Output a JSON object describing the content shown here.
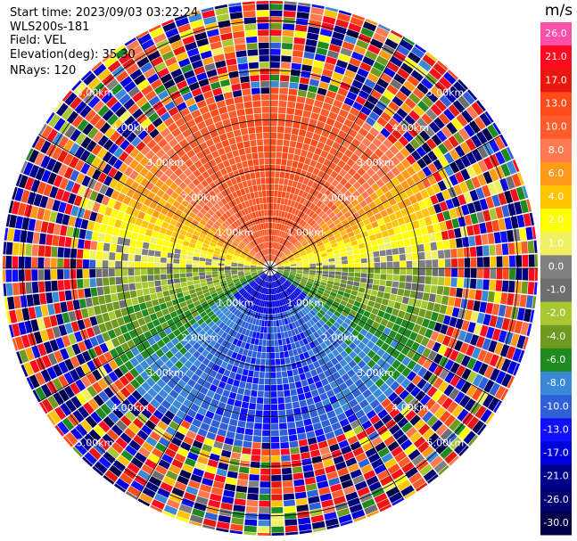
{
  "header": {
    "start_time": "Start time: 2023/09/03 03:22:24",
    "instrument": "WLS200s-181",
    "field": "Field: VEL",
    "elevation": "Elevation(deg): 35.30",
    "nrays": "NRays: 120"
  },
  "colorbar": {
    "unit": "m/s",
    "segments": [
      {
        "label": "26.0",
        "color": "#ff4fa8"
      },
      {
        "label": "21.0",
        "color": "#ff0a1e"
      },
      {
        "label": "17.0",
        "color": "#e8180e"
      },
      {
        "label": "13.0",
        "color": "#ff4a1a"
      },
      {
        "label": "10.0",
        "color": "#ff5c2c"
      },
      {
        "label": "8.0",
        "color": "#ff7a50"
      },
      {
        "label": "6.0",
        "color": "#ff9a18"
      },
      {
        "label": "4.0",
        "color": "#ffc400"
      },
      {
        "label": "2.0",
        "color": "#ffff00"
      },
      {
        "label": "1.0",
        "color": "#f0f060"
      },
      {
        "label": "0.0",
        "color": "#808080"
      },
      {
        "label": "-1.0",
        "color": "#6e6e6e"
      },
      {
        "label": "-2.0",
        "color": "#a8c832"
      },
      {
        "label": "-4.0",
        "color": "#6f9a20"
      },
      {
        "label": "-6.0",
        "color": "#1f8a1f"
      },
      {
        "label": "-8.0",
        "color": "#3a88d8"
      },
      {
        "label": "-10.0",
        "color": "#2f60d8"
      },
      {
        "label": "-13.0",
        "color": "#1010ff"
      },
      {
        "label": "-17.0",
        "color": "#0000dd"
      },
      {
        "label": "-21.0",
        "color": "#00008a"
      },
      {
        "label": "-26.0",
        "color": "#000070"
      },
      {
        "label": "-30.0",
        "color": "#000048"
      }
    ]
  },
  "chart_data": {
    "type": "heatmap",
    "projection": "polar-ppi",
    "field": "VEL",
    "units": "m/s",
    "nrays": 120,
    "max_range_km": 5.4,
    "range_rings_km": [
      1,
      2,
      3,
      4,
      5
    ],
    "ring_labels": [
      "1.00km",
      "2.00km",
      "3.00km",
      "4.00km",
      "5.00km"
    ],
    "spoke_angles_deg": [
      0,
      30,
      60,
      90,
      120,
      150,
      180,
      210,
      240,
      270,
      300,
      330
    ],
    "value_range": [
      -30,
      26
    ],
    "pattern": {
      "toward_direction_deg": 0,
      "toward_velocity": 13,
      "away_velocity": -10,
      "valid_range_km": 3.4,
      "noisy_beyond_km": 3.6
    }
  }
}
